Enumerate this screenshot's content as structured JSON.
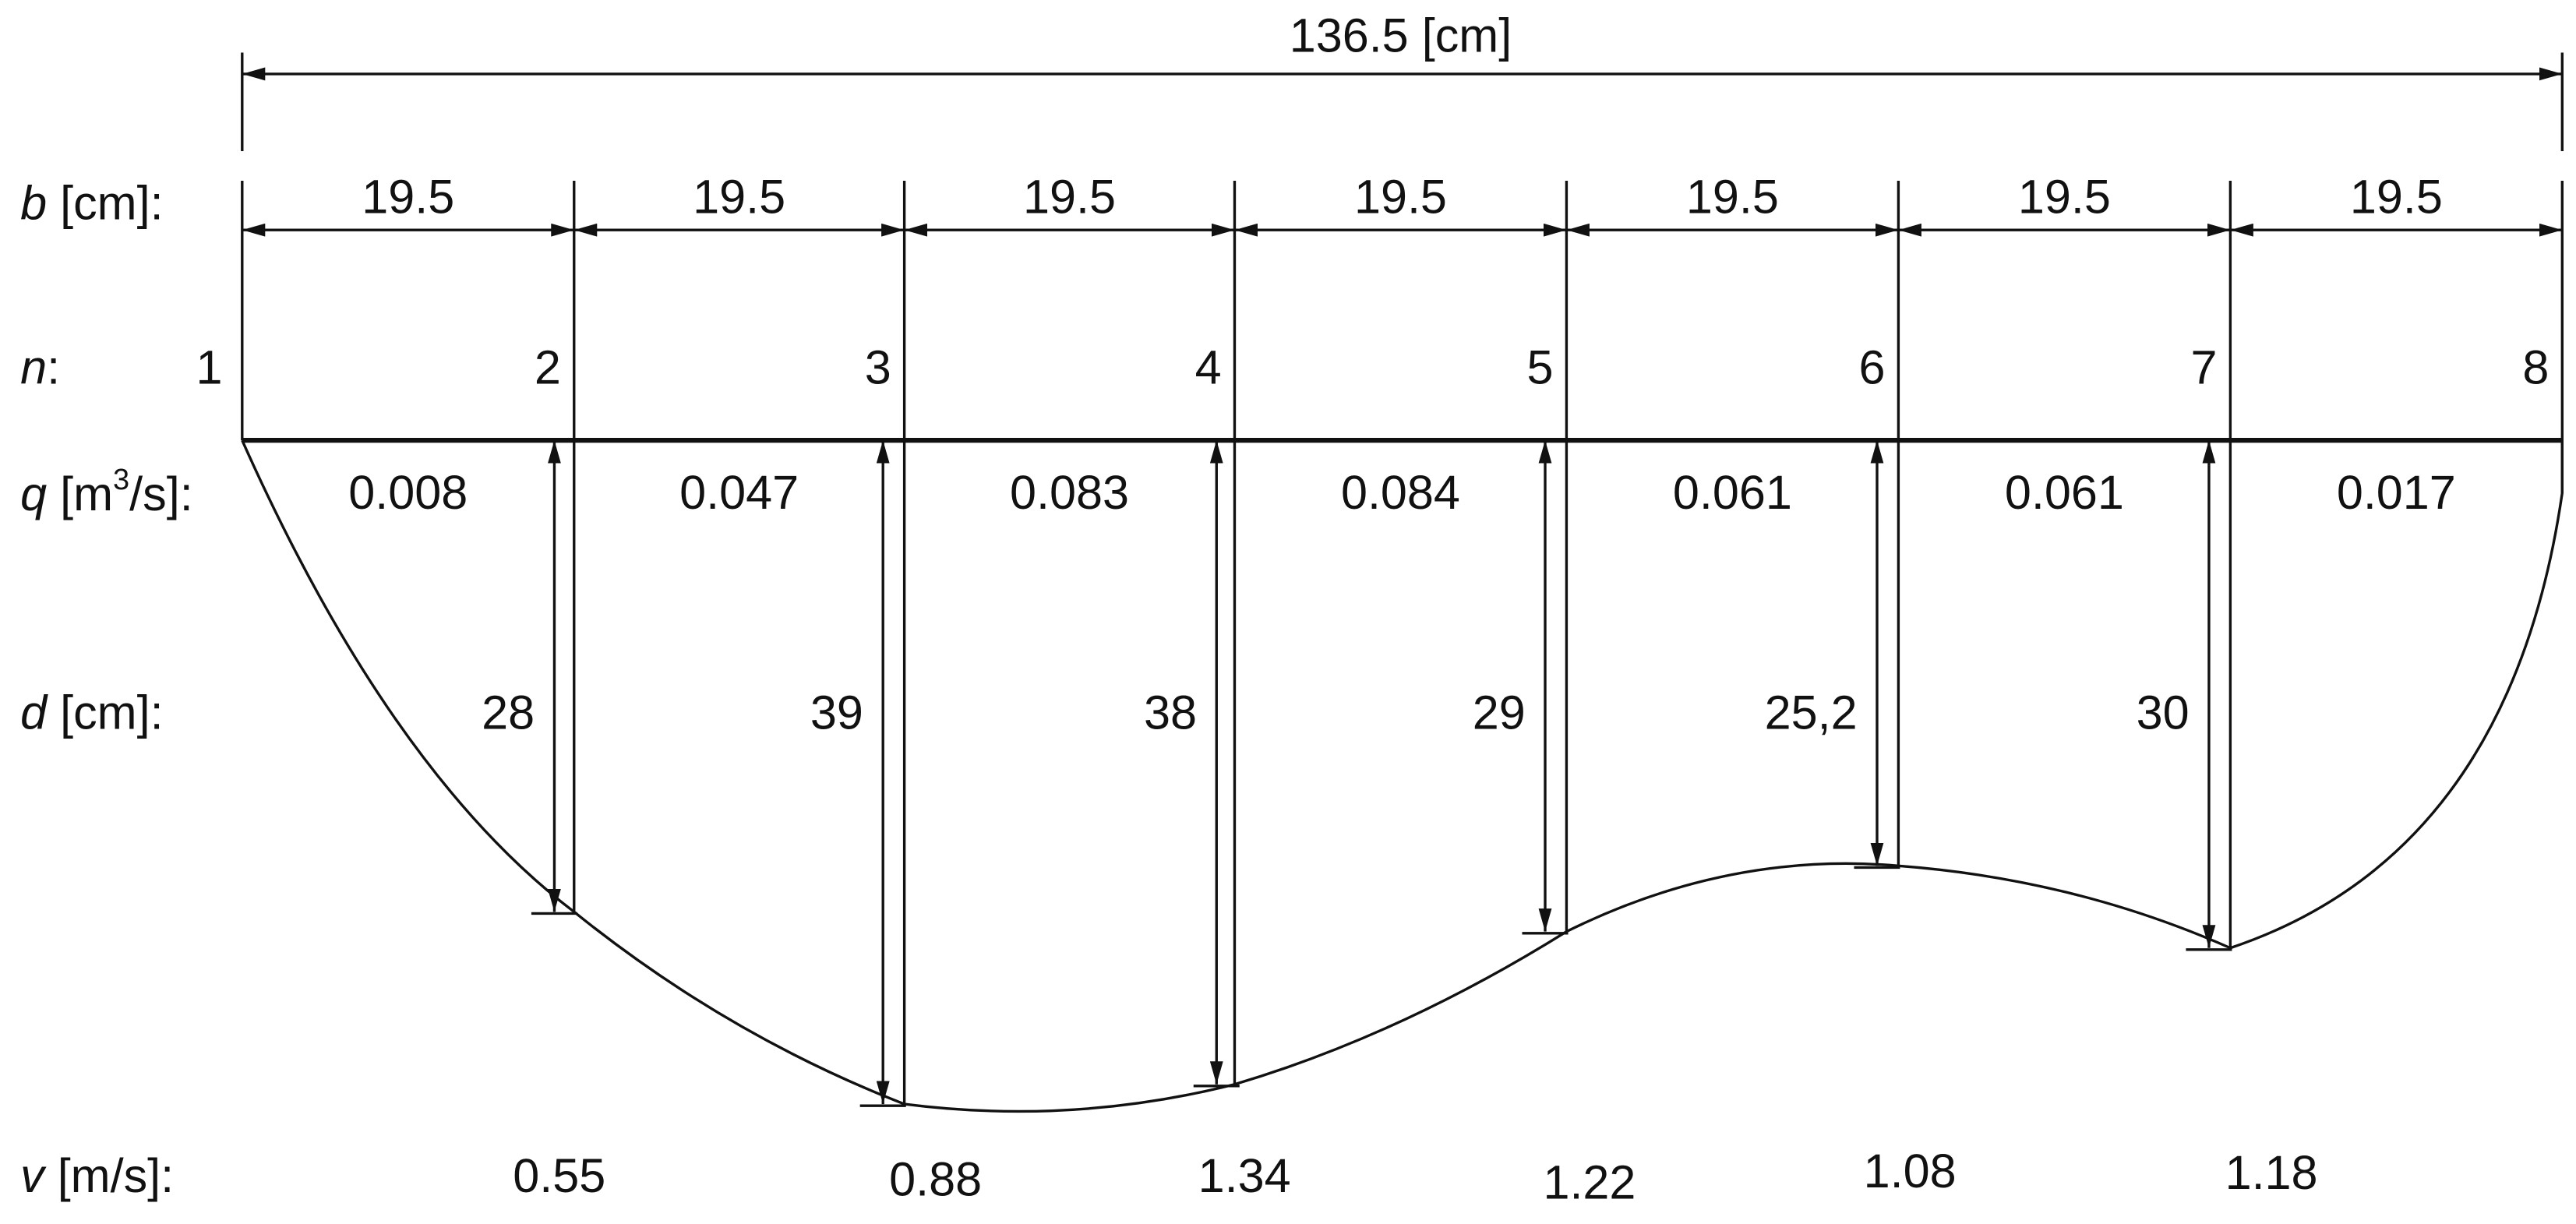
{
  "dimension": {
    "total": "136.5",
    "unit": "[cm]"
  },
  "labels": {
    "b": {
      "symbol": "b",
      "unit": "[cm]:"
    },
    "n": {
      "symbol": "n",
      "unit": ":"
    },
    "q": {
      "symbol": "q",
      "unit": "[m",
      "sup": "3",
      "rest": "/s]:"
    },
    "d": {
      "symbol": "d",
      "unit": "[cm]:"
    },
    "v": {
      "symbol": "v",
      "unit": "[m/s]:"
    }
  },
  "widths": [
    "19.5",
    "19.5",
    "19.5",
    "19.5",
    "19.5",
    "19.5",
    "19.5"
  ],
  "n": [
    "1",
    "2",
    "3",
    "4",
    "5",
    "6",
    "7",
    "8"
  ],
  "q": [
    "0.008",
    "0.047",
    "0.083",
    "0.084",
    "0.061",
    "0.061",
    "0.017"
  ],
  "d": [
    "28",
    "39",
    "38",
    "29",
    "25,2",
    "30"
  ],
  "v": [
    "0.55",
    "0.88",
    "1.34",
    "1.22",
    "1.08",
    "1.18"
  ]
}
